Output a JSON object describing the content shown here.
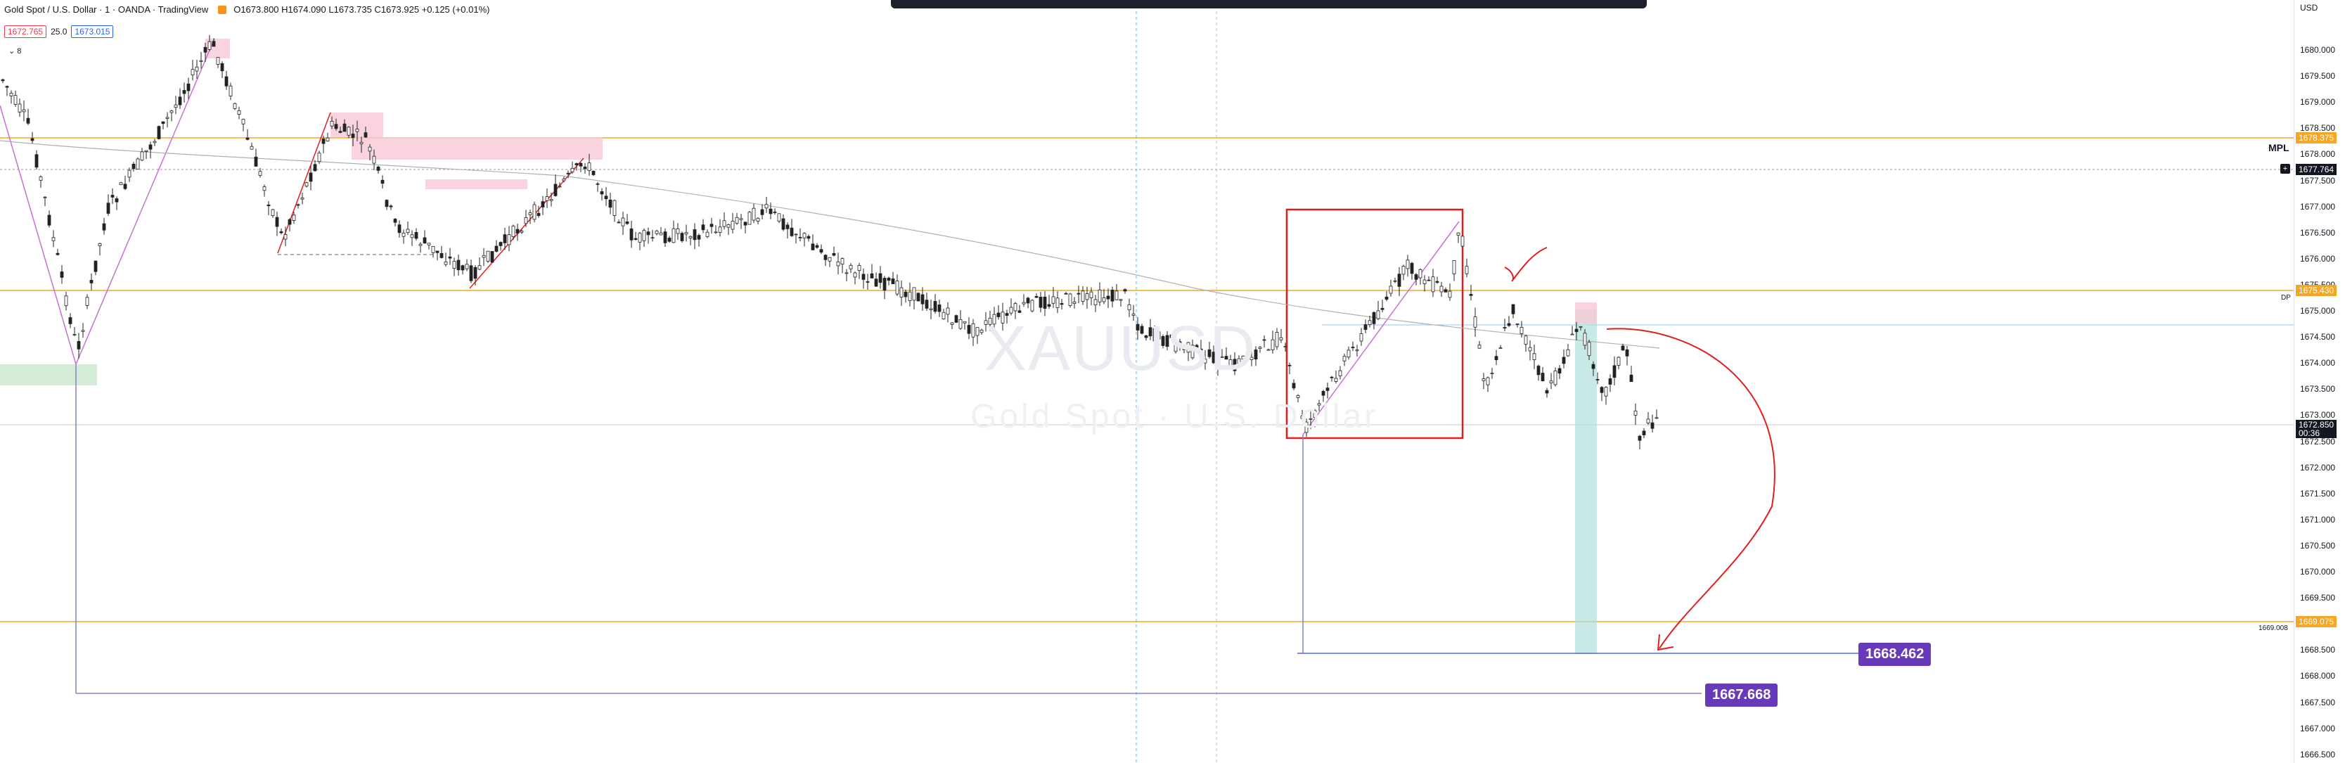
{
  "header": {
    "title": "Gold Spot / U.S. Dollar · 1 · OANDA · TradingView",
    "ohlc": "O1673.800 H1674.090 L1673.735 C1673.925 +0.125 (+0.01%)",
    "badge_sell": "1672.765",
    "badge_spread": "25.0",
    "badge_buy": "1673.015",
    "indicator_count": "8"
  },
  "top_right": {
    "currency": "USD"
  },
  "watermark": {
    "symbol": "XAUUSD",
    "name": "Gold Spot · U.S. Dollar"
  },
  "price_axis": {
    "ticks": [
      "1680.000",
      "1679.500",
      "1679.000",
      "1678.500",
      "1678.000",
      "1677.500",
      "1677.000",
      "1676.500",
      "1676.000",
      "1675.500",
      "1675.000",
      "1674.500",
      "1674.000",
      "1673.500",
      "1673.000",
      "1672.500",
      "1672.000",
      "1671.500",
      "1671.000",
      "1670.500",
      "1670.000",
      "1669.500",
      "1669.000",
      "1668.500",
      "1668.000",
      "1667.500",
      "1667.000",
      "1666.500"
    ],
    "label_top": "1678.375",
    "label_mpl_text": "MPL",
    "label_mpl": "1677.764",
    "label_mid": "1675.430",
    "label_mid_note": "DP",
    "label_current": "1672.850",
    "label_countdown": "00:36",
    "label_low": "1669.075",
    "label_low_note": "1669.008"
  },
  "measurements": {
    "m1": "1668.462",
    "m2": "1667.668"
  },
  "colors": {
    "orange_level": "#f5a623",
    "measure_purple": "#673ab7",
    "red_box": "#e01e1e",
    "pink_zone": "#f8c8d4",
    "green_zone": "#cfe9d3",
    "teal_zone": "#b2dfdb"
  }
}
